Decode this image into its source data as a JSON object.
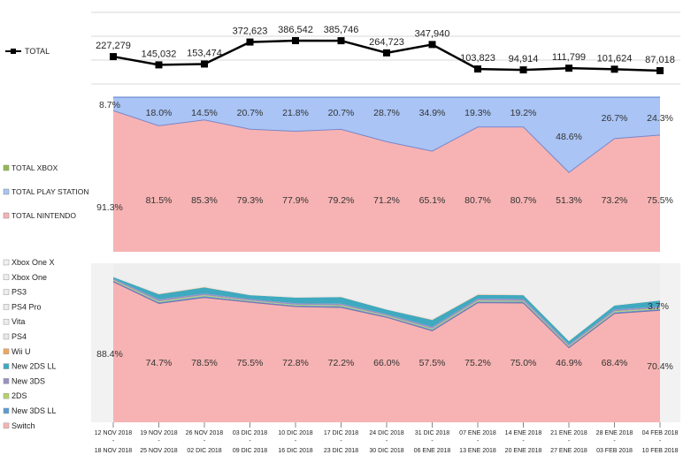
{
  "chart_data": [
    {
      "type": "line",
      "x": [
        "12 NOV 2018 - 18 NOV 2018",
        "19 NOV 2018 - 25 NOV 2018",
        "26 NOV 2018 - 02 DIC 2018",
        "03 DIC 2018 - 09 DIC 2018",
        "10 DIC 2018 - 16 DIC 2018",
        "17 DIC 2018 - 23 DIC 2018",
        "24 DIC 2018 - 30 DIC 2018",
        "31 DIC 2018 - 06 ENE 2018",
        "07 ENE 2018 - 13 ENE 2018",
        "14 ENE 2018 - 20 ENE 2018",
        "21 ENE 2018 - 27 ENE 2018",
        "28 ENE 2018 - 03 FEB 2018",
        "04 FEB 2018 - 10 FEB 2018"
      ],
      "series": [
        {
          "name": "TOTAL",
          "values": [
            227279,
            145032,
            153474,
            372623,
            386542,
            385746,
            264723,
            347940,
            103823,
            94914,
            111799,
            101624,
            87018
          ],
          "labels": [
            "227,279",
            "145,032",
            "153,474",
            "372,623",
            "386,542",
            "385,746",
            "264,723",
            "347,940",
            "103,823",
            "94,914",
            "111,799",
            "101,624",
            "87,018"
          ]
        }
      ],
      "legend_position": "left",
      "grid": true
    },
    {
      "type": "area",
      "stacked": "percent",
      "series": [
        {
          "name": "TOTAL XBOX",
          "values": [
            0,
            0,
            0,
            0,
            0,
            0,
            0,
            0,
            0,
            0,
            0,
            0,
            0
          ]
        },
        {
          "name": "TOTAL PLAY STATION",
          "values": [
            8.7,
            18.0,
            14.5,
            20.7,
            21.8,
            20.7,
            28.7,
            34.9,
            19.3,
            19.2,
            48.6,
            26.7,
            24.3
          ],
          "labels": [
            "8.7%",
            "18.0%",
            "14.5%",
            "20.7%",
            "21.8%",
            "20.7%",
            "28.7%",
            "34.9%",
            "19.3%",
            "19.2%",
            "48.6%",
            "26.7%",
            "24.3%"
          ]
        },
        {
          "name": "TOTAL NINTENDO",
          "values": [
            91.3,
            81.5,
            85.3,
            79.3,
            77.9,
            79.2,
            71.2,
            65.1,
            80.7,
            80.7,
            51.3,
            73.2,
            75.5
          ],
          "labels": [
            "91.3%",
            "81.5%",
            "85.3%",
            "79.3%",
            "77.9%",
            "79.2%",
            "71.2%",
            "65.1%",
            "80.7%",
            "80.7%",
            "51.3%",
            "73.2%",
            "75.5%"
          ]
        }
      ],
      "colors": {
        "TOTAL XBOX": "#8fbc4a",
        "TOTAL PLAY STATION": "#a9c4f5",
        "TOTAL NINTENDO": "#f7b3b3"
      },
      "legend_position": "left"
    },
    {
      "type": "area",
      "stacked": "percent",
      "legend": [
        "Xbox One X",
        "Xbox One",
        "PS3",
        "PS4 Pro",
        "Vita",
        "PS4",
        "Wii U",
        "New 2DS LL",
        "New 3DS",
        "2DS",
        "New 3DS LL",
        "Switch"
      ],
      "series": [
        {
          "name": "Switch",
          "values": [
            88.4,
            74.7,
            78.5,
            75.5,
            72.8,
            72.2,
            66.0,
            57.5,
            75.2,
            75.0,
            46.9,
            68.4,
            70.4
          ],
          "labels": [
            "88.4%",
            "74.7%",
            "78.5%",
            "75.5%",
            "72.8%",
            "72.2%",
            "66.0%",
            "57.5%",
            "75.2%",
            "75.0%",
            "46.9%",
            "68.4%",
            "70.4%"
          ]
        },
        {
          "name": "New 3DS LL",
          "values": [
            0.6,
            0.8,
            0.8,
            0.6,
            0.6,
            0.8,
            0.6,
            0.8,
            0.8,
            0.8,
            0.6,
            0.8,
            0.8
          ]
        },
        {
          "name": "2DS",
          "values": [
            0.5,
            0.6,
            0.6,
            0.4,
            0.5,
            0.6,
            0.5,
            0.6,
            0.6,
            0.6,
            0.5,
            0.6,
            0.6
          ]
        },
        {
          "name": "New 3DS",
          "values": [
            0.8,
            1.2,
            1.0,
            0.9,
            0.9,
            1.0,
            0.9,
            1.1,
            1.1,
            1.1,
            0.9,
            1.1,
            1.0
          ]
        },
        {
          "name": "New 2DS LL",
          "values": [
            1.0,
            3.2,
            3.9,
            2.5,
            3.6,
            4.1,
            2.8,
            4.3,
            2.4,
            2.4,
            2.1,
            2.5,
            3.7
          ],
          "labels": [
            "",
            "",
            "",
            "",
            "",
            "",
            "",
            "",
            "",
            "",
            "",
            "",
            "3.7%"
          ]
        },
        {
          "name": "Wii U",
          "values": [
            0,
            0.2,
            0.2,
            0.1,
            0.1,
            0.1,
            0.1,
            0.2,
            0.2,
            0.2,
            0.1,
            0.1,
            0.1
          ]
        },
        {
          "name": "PS4",
          "values": [
            0.5,
            0.6,
            0.5,
            0.4,
            0.4,
            0.4,
            0.4,
            0.5,
            0.5,
            0.5,
            0.4,
            0.4,
            0.4
          ]
        },
        {
          "name": "Vita",
          "values": [
            0.2,
            0.2,
            0.2,
            0.2,
            0.2,
            0.2,
            0.2,
            0.2,
            0.2,
            0.2,
            0.2,
            0.2,
            0.2
          ]
        },
        {
          "name": "PS4 Pro",
          "values": [
            0.2,
            0.3,
            0.3,
            0.3,
            0.3,
            0.3,
            0.3,
            0.3,
            0.3,
            0.3,
            0.3,
            0.3,
            0.3
          ]
        },
        {
          "name": "PS3",
          "values": [
            0,
            0.1,
            0.1,
            0.1,
            0.1,
            0.1,
            0.1,
            0.1,
            0.1,
            0.1,
            0.1,
            0.1,
            0.1
          ]
        },
        {
          "name": "Xbox One",
          "values": [
            7.8,
            18.1,
            13.9,
            19.0,
            20.5,
            20.2,
            28.1,
            34.4,
            18.6,
            18.8,
            47.9,
            25.5,
            22.4
          ]
        },
        {
          "name": "Xbox One X",
          "values": [
            0,
            0,
            0,
            0,
            0,
            0,
            0,
            0,
            0,
            0,
            0,
            0,
            0
          ]
        }
      ],
      "colors": {
        "Switch": "#f7b3b3",
        "New 3DS LL": "#5b9bd5",
        "2DS": "#b4d36b",
        "New 3DS": "#9b8fc4",
        "New 2DS LL": "#3fa9c0",
        "Wii U": "#f2a65a",
        "PS4": "#e8e8e8",
        "Vita": "#ececec",
        "PS4 Pro": "#ebebeb",
        "PS3": "#ededed",
        "Xbox One": "#eeeeee",
        "Xbox One X": "#f0f0f0"
      },
      "legend_position": "left"
    }
  ]
}
